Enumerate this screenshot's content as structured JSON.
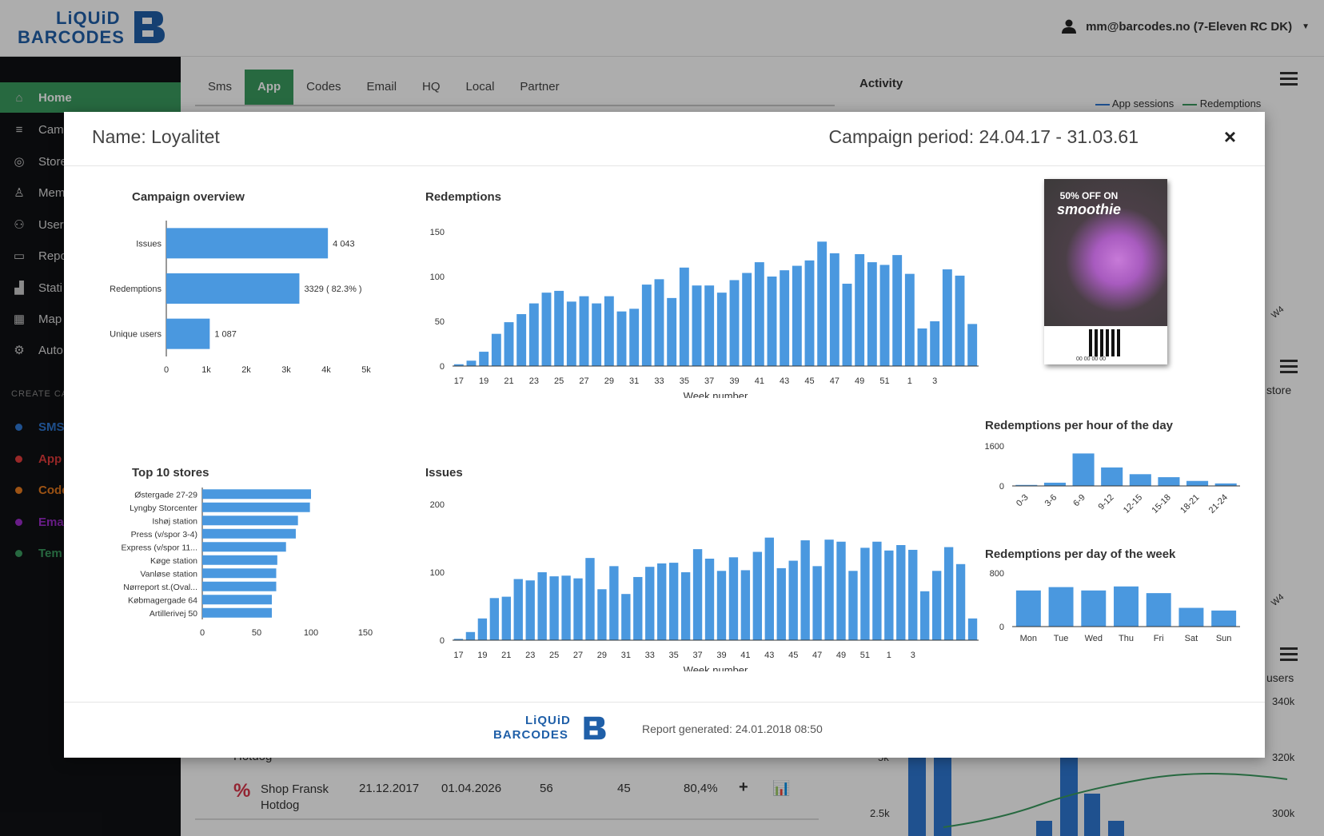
{
  "brand": {
    "line1": "LiQUiD",
    "line2": "BARCODES"
  },
  "user": {
    "label": "mm@barcodes.no (7-Eleven RC DK)"
  },
  "sidebar": {
    "items": [
      {
        "label": "Home",
        "icon": "home-icon"
      },
      {
        "label": "Cam",
        "icon": "list-icon"
      },
      {
        "label": "Store",
        "icon": "pin-icon"
      },
      {
        "label": "Mem",
        "icon": "member-icon"
      },
      {
        "label": "User",
        "icon": "users-icon"
      },
      {
        "label": "Repo",
        "icon": "folder-icon"
      },
      {
        "label": "Stati",
        "icon": "stats-icon"
      },
      {
        "label": "Map",
        "icon": "map-icon"
      },
      {
        "label": "Auto",
        "icon": "gears-icon"
      }
    ],
    "section": "CREATE CA",
    "create": [
      {
        "label": "SMS",
        "color": "#2f78d3"
      },
      {
        "label": "App",
        "color": "#e23b3b"
      },
      {
        "label": "Code",
        "color": "#e87b1e"
      },
      {
        "label": "Ema",
        "color": "#9b2bc9"
      },
      {
        "label": "Tem",
        "color": "#3a9b5f"
      }
    ]
  },
  "tabs": [
    "Sms",
    "App",
    "Codes",
    "Email",
    "HQ",
    "Local",
    "Partner"
  ],
  "activity": {
    "title": "Activity",
    "legend": [
      "App sessions",
      "Redemptions"
    ]
  },
  "background": {
    "store_label": "store",
    "users_label": "users",
    "w4": "W4",
    "axis_right": [
      "340k",
      "320k",
      "300k"
    ],
    "axis_left": [
      "5k",
      "2.5k"
    ],
    "rows": [
      {
        "name": "Hotdog",
        "start": "",
        "end": "",
        "a": "",
        "b": "",
        "pct": ""
      },
      {
        "name": "Shop Fransk Hotdog",
        "start": "21.12.2017",
        "end": "01.04.2026",
        "a": "56",
        "b": "45",
        "pct": "80,4%"
      }
    ]
  },
  "modal": {
    "name": "Name: Loyalitet",
    "period": "Campaign period: 24.04.17 - 31.03.61",
    "close": "×",
    "report": "Report generated: 24.01.2018 08:50",
    "promo": {
      "line1": "50% OFF ON",
      "line2": "smoothie",
      "code": "00 00 00 00"
    }
  },
  "chart_data": [
    {
      "type": "bar",
      "orientation": "horizontal",
      "title": "Campaign overview",
      "categories": [
        "Issues",
        "Redemptions",
        "Unique users"
      ],
      "values": [
        4043,
        3329,
        1087
      ],
      "labels": [
        "4 043",
        "3329 ( 82.3% )",
        "1 087"
      ],
      "xticks": [
        "0",
        "1k",
        "2k",
        "3k",
        "4k",
        "5k"
      ],
      "xlim": [
        0,
        5000
      ]
    },
    {
      "type": "bar",
      "title": "Redemptions",
      "xlabel": "Week number",
      "ylim": [
        0,
        150
      ],
      "yticks": [
        "0",
        "50",
        "100",
        "150"
      ],
      "xticks": [
        "17",
        "19",
        "21",
        "23",
        "25",
        "27",
        "29",
        "31",
        "33",
        "35",
        "37",
        "39",
        "41",
        "43",
        "45",
        "47",
        "49",
        "51",
        "1",
        "3"
      ],
      "values": [
        2,
        6,
        16,
        36,
        49,
        58,
        70,
        82,
        84,
        72,
        78,
        70,
        78,
        61,
        64,
        91,
        97,
        76,
        110,
        90,
        90,
        82,
        96,
        104,
        116,
        100,
        107,
        112,
        118,
        139,
        126,
        92,
        125,
        116,
        113,
        124,
        103,
        42,
        50,
        108,
        101,
        47
      ]
    },
    {
      "type": "bar",
      "orientation": "horizontal",
      "title": "Top 10 stores",
      "categories": [
        "Østergade 27-29",
        "Lyngby Storcenter",
        "Ishøj station",
        "Press (v/spor 3-4)",
        "Express (v/spor 11...",
        "Køge station",
        "Vanløse station",
        "Nørreport st.(Oval...",
        "Købmagergade 64",
        "Artillerivej 50"
      ],
      "values": [
        100,
        99,
        88,
        86,
        77,
        69,
        68,
        68,
        64,
        64
      ],
      "xticks": [
        "0",
        "50",
        "100",
        "150"
      ],
      "xlim": [
        0,
        150
      ]
    },
    {
      "type": "bar",
      "title": "Issues",
      "xlabel": "Week number",
      "ylim": [
        0,
        200
      ],
      "yticks": [
        "0",
        "100",
        "200"
      ],
      "xticks": [
        "17",
        "19",
        "21",
        "23",
        "25",
        "27",
        "29",
        "31",
        "33",
        "35",
        "37",
        "39",
        "41",
        "43",
        "45",
        "47",
        "49",
        "51",
        "1",
        "3"
      ],
      "values": [
        2,
        12,
        32,
        62,
        64,
        90,
        88,
        100,
        94,
        95,
        91,
        121,
        75,
        109,
        68,
        93,
        108,
        113,
        114,
        100,
        134,
        120,
        102,
        122,
        103,
        130,
        151,
        106,
        117,
        147,
        109,
        148,
        145,
        102,
        136,
        145,
        132,
        140,
        133,
        72,
        102,
        137,
        112,
        32
      ]
    },
    {
      "type": "bar",
      "title": "Redemptions per hour of the day",
      "ylim": [
        0,
        1600
      ],
      "yticks": [
        "0",
        "1600"
      ],
      "categories": [
        "0-3",
        "3-6",
        "6-9",
        "9-12",
        "12-15",
        "15-18",
        "18-21",
        "21-24"
      ],
      "values": [
        40,
        130,
        1300,
        740,
        470,
        350,
        200,
        100
      ]
    },
    {
      "type": "bar",
      "title": "Redemptions per day of the week",
      "ylim": [
        0,
        800
      ],
      "yticks": [
        "0",
        "800"
      ],
      "categories": [
        "Mon",
        "Tue",
        "Wed",
        "Thu",
        "Fri",
        "Sat",
        "Sun"
      ],
      "values": [
        540,
        590,
        540,
        600,
        500,
        280,
        240
      ]
    }
  ]
}
